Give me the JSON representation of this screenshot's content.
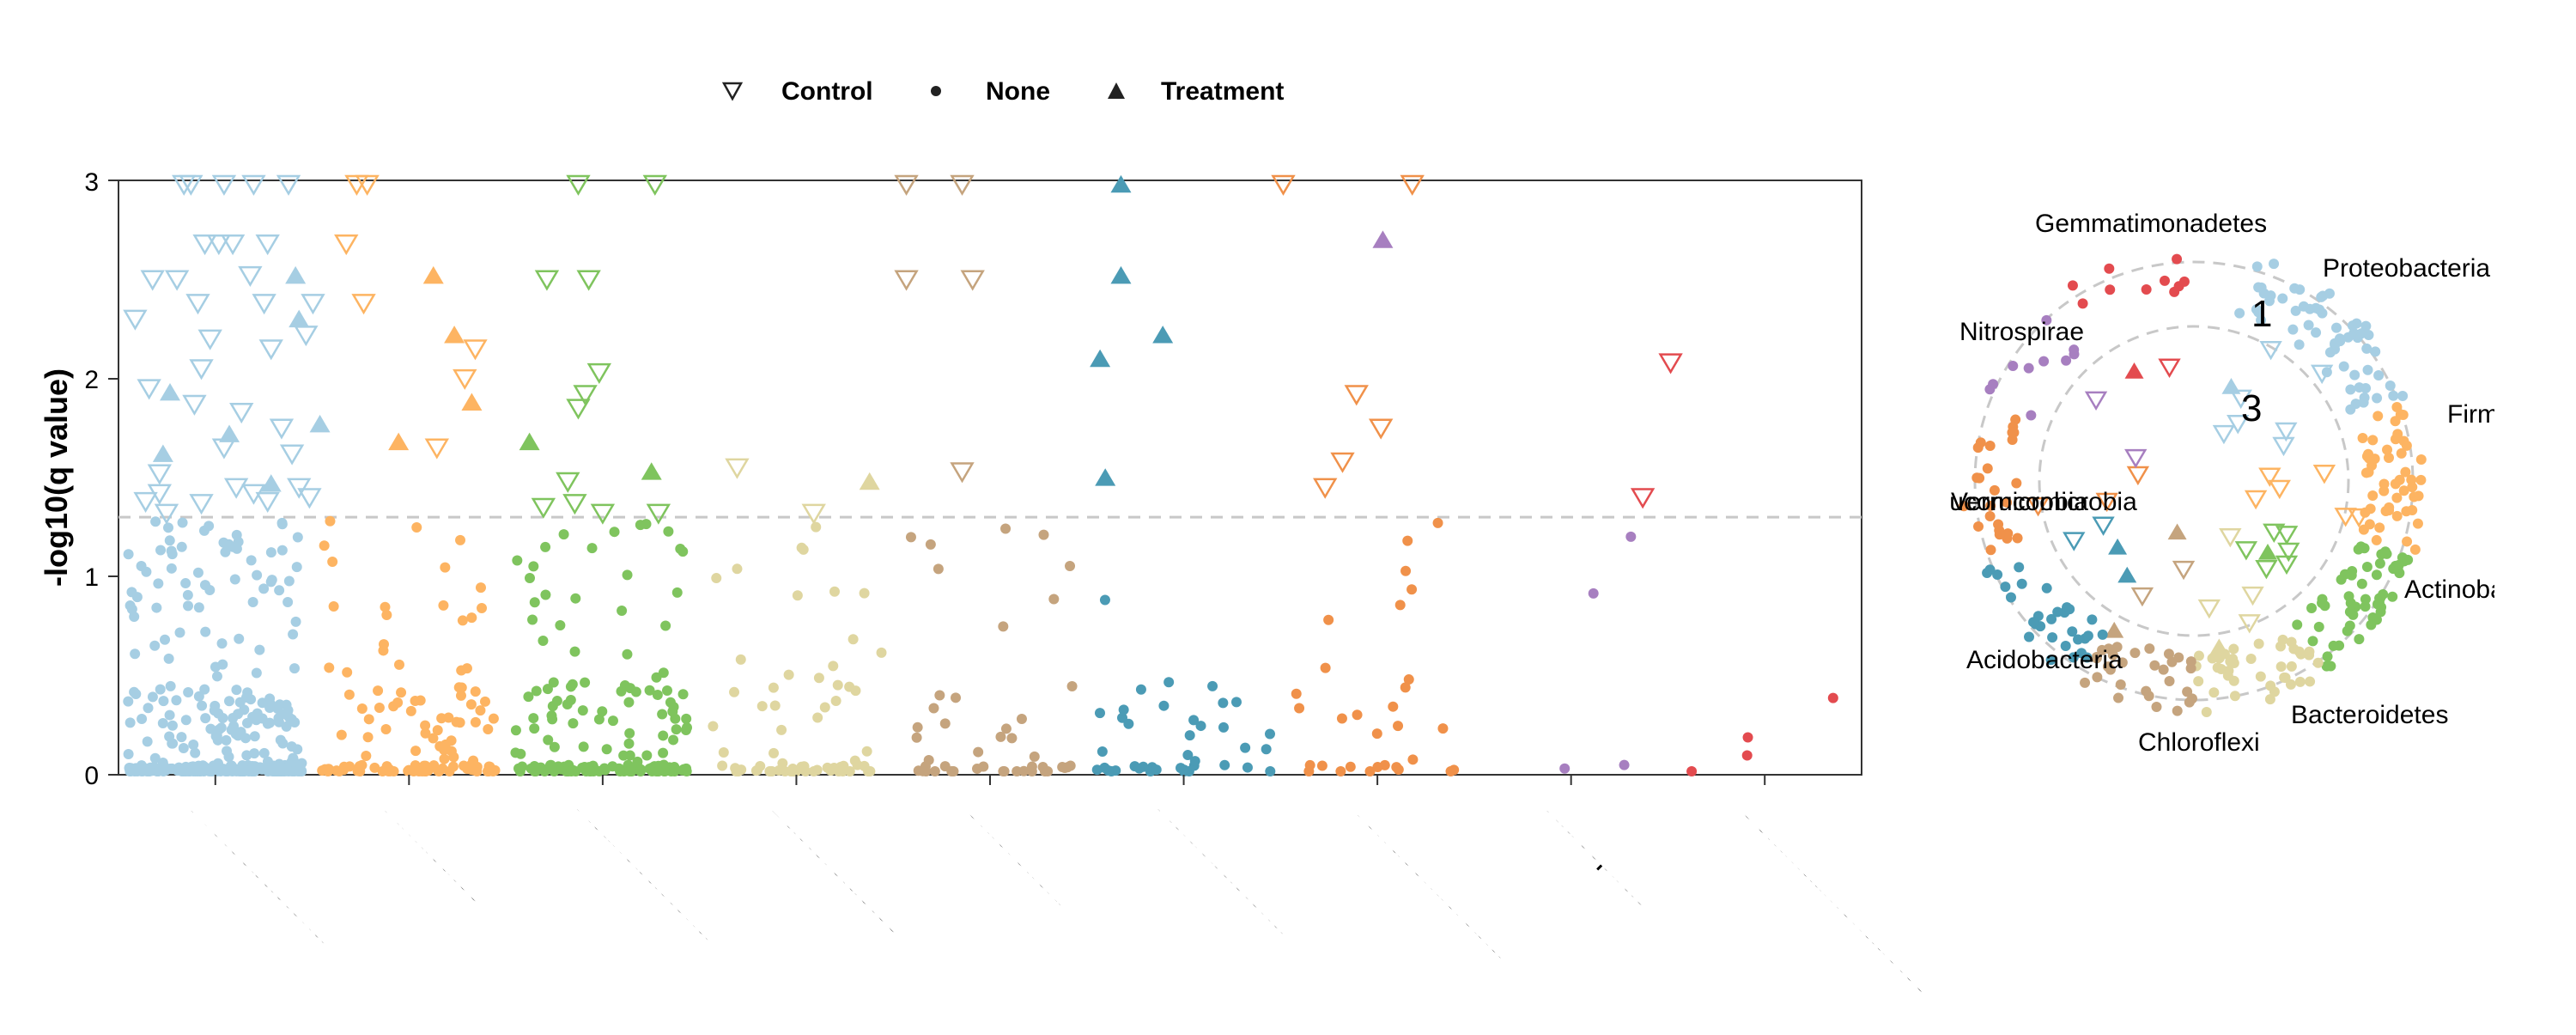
{
  "chart_data": [
    {
      "type": "scatter",
      "title": "",
      "ylabel": "-log10(q value)",
      "xlabel": "",
      "ylim": [
        0,
        3
      ],
      "yticks": [
        "0",
        "1",
        "2",
        "3"
      ],
      "threshold": 1.3,
      "categories": [
        "Proteobacteria",
        "Firmicutes",
        "Actinobacteria",
        "Bacteroidetes",
        "Chloroflexi",
        "Acidobacteria",
        "Verrucomicrobia",
        "Nitrospirae",
        "Gemmatimonadetes"
      ],
      "category_colors": [
        "#a6cee3",
        "#fdb462",
        "#7fc45e",
        "#dfd6a0",
        "#c5a47e",
        "#4b9bb5",
        "#f0914a",
        "#a77fc0",
        "#e34b4f"
      ],
      "legend": [
        {
          "label": "Control",
          "shape": "triangle-down-open"
        },
        {
          "label": "None",
          "shape": "circle"
        },
        {
          "label": "Treatment",
          "shape": "triangle-up"
        }
      ],
      "points": [
        {
          "c": 0,
          "x": 0.04,
          "y": 2.3,
          "g": "Control"
        },
        {
          "c": 0,
          "x": 0.14,
          "y": 2.5,
          "g": "Control"
        },
        {
          "c": 0,
          "x": 0.28,
          "y": 2.5,
          "g": "Control"
        },
        {
          "c": 0,
          "x": 0.44,
          "y": 2.68,
          "g": "Control"
        },
        {
          "c": 0,
          "x": 0.52,
          "y": 2.68,
          "g": "Control"
        },
        {
          "c": 0,
          "x": 0.6,
          "y": 2.68,
          "g": "Control"
        },
        {
          "c": 0,
          "x": 0.7,
          "y": 2.52,
          "g": "Control"
        },
        {
          "c": 0,
          "x": 0.8,
          "y": 2.68,
          "g": "Control"
        },
        {
          "c": 0,
          "x": 0.47,
          "y": 2.2,
          "g": "Control"
        },
        {
          "c": 0,
          "x": 0.42,
          "y": 2.05,
          "g": "Control"
        },
        {
          "c": 0,
          "x": 0.65,
          "y": 1.83,
          "g": "Control"
        },
        {
          "c": 0,
          "x": 0.38,
          "y": 1.87,
          "g": "Control"
        },
        {
          "c": 0,
          "x": 0.55,
          "y": 1.65,
          "g": "Control"
        },
        {
          "c": 0,
          "x": 0.12,
          "y": 1.95,
          "g": "Control"
        },
        {
          "c": 0,
          "x": 0.94,
          "y": 1.62,
          "g": "Control"
        },
        {
          "c": 0,
          "x": 0.88,
          "y": 1.75,
          "g": "Control"
        },
        {
          "c": 0,
          "x": 1.06,
          "y": 2.38,
          "g": "Control"
        },
        {
          "c": 0,
          "x": 0.18,
          "y": 1.52,
          "g": "Control"
        },
        {
          "c": 0,
          "x": 0.18,
          "y": 1.42,
          "g": "Control"
        },
        {
          "c": 0,
          "x": 0.22,
          "y": 1.32,
          "g": "Control"
        },
        {
          "c": 0,
          "x": 0.42,
          "y": 1.37,
          "g": "Control"
        },
        {
          "c": 0,
          "x": 0.62,
          "y": 1.45,
          "g": "Control"
        },
        {
          "c": 0,
          "x": 0.72,
          "y": 1.42,
          "g": "Control"
        },
        {
          "c": 0,
          "x": 0.8,
          "y": 1.38,
          "g": "Control"
        },
        {
          "c": 0,
          "x": 0.98,
          "y": 1.45,
          "g": "Control"
        },
        {
          "c": 0,
          "x": 1.04,
          "y": 1.4,
          "g": "Control"
        },
        {
          "c": 0,
          "x": 0.1,
          "y": 1.38,
          "g": "Control"
        },
        {
          "c": 0,
          "x": 0.78,
          "y": 2.38,
          "g": "Control"
        },
        {
          "c": 0,
          "x": 0.4,
          "y": 2.38,
          "g": "Control"
        },
        {
          "c": 0,
          "x": 0.82,
          "y": 2.15,
          "g": "Control"
        },
        {
          "c": 0,
          "x": 1.02,
          "y": 2.22,
          "g": "Control"
        },
        {
          "c": 0,
          "x": 0.32,
          "y": 2.98,
          "g": "Control"
        },
        {
          "c": 0,
          "x": 0.55,
          "y": 2.98,
          "g": "Control"
        },
        {
          "c": 0,
          "x": 0.72,
          "y": 2.98,
          "g": "Control"
        },
        {
          "c": 0,
          "x": 0.92,
          "y": 2.98,
          "g": "Control"
        },
        {
          "c": 0,
          "x": 0.36,
          "y": 2.98,
          "g": "Control"
        },
        {
          "c": 0,
          "x": 0.2,
          "y": 1.62,
          "g": "Treatment"
        },
        {
          "c": 0,
          "x": 0.24,
          "y": 1.93,
          "g": "Treatment"
        },
        {
          "c": 0,
          "x": 0.58,
          "y": 1.72,
          "g": "Treatment"
        },
        {
          "c": 0,
          "x": 0.82,
          "y": 1.47,
          "g": "Treatment"
        },
        {
          "c": 0,
          "x": 0.96,
          "y": 2.52,
          "g": "Treatment"
        },
        {
          "c": 0,
          "x": 0.98,
          "y": 2.3,
          "g": "Treatment"
        },
        {
          "c": 0,
          "x": 1.1,
          "y": 1.77,
          "g": "Treatment"
        },
        {
          "c": 1,
          "x": 0.14,
          "y": 2.68,
          "g": "Control"
        },
        {
          "c": 1,
          "x": 0.24,
          "y": 2.38,
          "g": "Control"
        },
        {
          "c": 1,
          "x": 0.66,
          "y": 1.65,
          "g": "Control"
        },
        {
          "c": 1,
          "x": 0.82,
          "y": 2.0,
          "g": "Control"
        },
        {
          "c": 1,
          "x": 0.88,
          "y": 2.15,
          "g": "Control"
        },
        {
          "c": 1,
          "x": 0.2,
          "y": 2.98,
          "g": "Control"
        },
        {
          "c": 1,
          "x": 0.26,
          "y": 2.98,
          "g": "Control"
        },
        {
          "c": 1,
          "x": 0.44,
          "y": 1.68,
          "g": "Treatment"
        },
        {
          "c": 1,
          "x": 0.64,
          "y": 2.52,
          "g": "Treatment"
        },
        {
          "c": 1,
          "x": 0.76,
          "y": 2.22,
          "g": "Treatment"
        },
        {
          "c": 1,
          "x": 0.86,
          "y": 1.88,
          "g": "Treatment"
        },
        {
          "c": 2,
          "x": 0.18,
          "y": 2.5,
          "g": "Control"
        },
        {
          "c": 2,
          "x": 0.42,
          "y": 2.5,
          "g": "Control"
        },
        {
          "c": 2,
          "x": 0.16,
          "y": 1.35,
          "g": "Control"
        },
        {
          "c": 2,
          "x": 0.3,
          "y": 1.48,
          "g": "Control"
        },
        {
          "c": 2,
          "x": 0.36,
          "y": 1.85,
          "g": "Control"
        },
        {
          "c": 2,
          "x": 0.4,
          "y": 1.92,
          "g": "Control"
        },
        {
          "c": 2,
          "x": 0.48,
          "y": 2.03,
          "g": "Control"
        },
        {
          "c": 2,
          "x": 0.34,
          "y": 1.37,
          "g": "Control"
        },
        {
          "c": 2,
          "x": 0.5,
          "y": 1.32,
          "g": "Control"
        },
        {
          "c": 2,
          "x": 0.82,
          "y": 1.32,
          "g": "Control"
        },
        {
          "c": 2,
          "x": 0.36,
          "y": 2.98,
          "g": "Control"
        },
        {
          "c": 2,
          "x": 0.8,
          "y": 2.98,
          "g": "Control"
        },
        {
          "c": 2,
          "x": 0.08,
          "y": 1.68,
          "g": "Treatment"
        },
        {
          "c": 2,
          "x": 0.78,
          "y": 1.53,
          "g": "Treatment"
        },
        {
          "c": 3,
          "x": 0.16,
          "y": 1.55,
          "g": "Control"
        },
        {
          "c": 3,
          "x": 0.6,
          "y": 1.32,
          "g": "Control"
        },
        {
          "c": 4,
          "x": 0.02,
          "y": 2.5,
          "g": "Control"
        },
        {
          "c": 4,
          "x": 0.4,
          "y": 2.5,
          "g": "Control"
        },
        {
          "c": 4,
          "x": 0.34,
          "y": 1.53,
          "g": "Control"
        },
        {
          "c": 4,
          "x": 0.02,
          "y": 2.98,
          "g": "Control"
        },
        {
          "c": 4,
          "x": 0.34,
          "y": 2.98,
          "g": "Control"
        },
        {
          "c": 3,
          "x": 0.92,
          "y": 1.48,
          "g": "Treatment"
        },
        {
          "c": 5,
          "x": 0.02,
          "y": 2.1,
          "g": "Treatment"
        },
        {
          "c": 5,
          "x": 0.05,
          "y": 1.5,
          "g": "Treatment"
        },
        {
          "c": 5,
          "x": 0.14,
          "y": 2.52,
          "g": "Treatment"
        },
        {
          "c": 5,
          "x": 0.38,
          "y": 2.22,
          "g": "Treatment"
        },
        {
          "c": 5,
          "x": 0.14,
          "y": 2.98,
          "g": "Treatment"
        },
        {
          "c": 6,
          "x": 0.2,
          "y": 1.45,
          "g": "Control"
        },
        {
          "c": 6,
          "x": 0.3,
          "y": 1.58,
          "g": "Control"
        },
        {
          "c": 6,
          "x": 0.38,
          "y": 1.92,
          "g": "Control"
        },
        {
          "c": 6,
          "x": 0.52,
          "y": 1.75,
          "g": "Control"
        },
        {
          "c": 6,
          "x": 0.7,
          "y": 2.98,
          "g": "Control"
        },
        {
          "c": 6,
          "x": -0.04,
          "y": 2.98,
          "g": "Control"
        },
        {
          "c": 7,
          "x": -0.58,
          "y": 2.7,
          "g": "Treatment"
        },
        {
          "c": 8,
          "x": -0.2,
          "y": 1.4,
          "g": "Control"
        },
        {
          "c": 8,
          "x": -0.04,
          "y": 2.08,
          "g": "Control"
        }
      ],
      "none_points": "background"
    },
    {
      "type": "scatter",
      "subtype": "circular",
      "ring_labels": [
        "1",
        "3"
      ],
      "categories": [
        "Proteobacteria",
        "Firmicutes",
        "Actinobacteria",
        "Bacteroidetes",
        "Chloroflexi",
        "Acidobacteria",
        "Verrucomicrobia",
        "Nitrospirae",
        "Gemmatimonadetes"
      ]
    }
  ]
}
